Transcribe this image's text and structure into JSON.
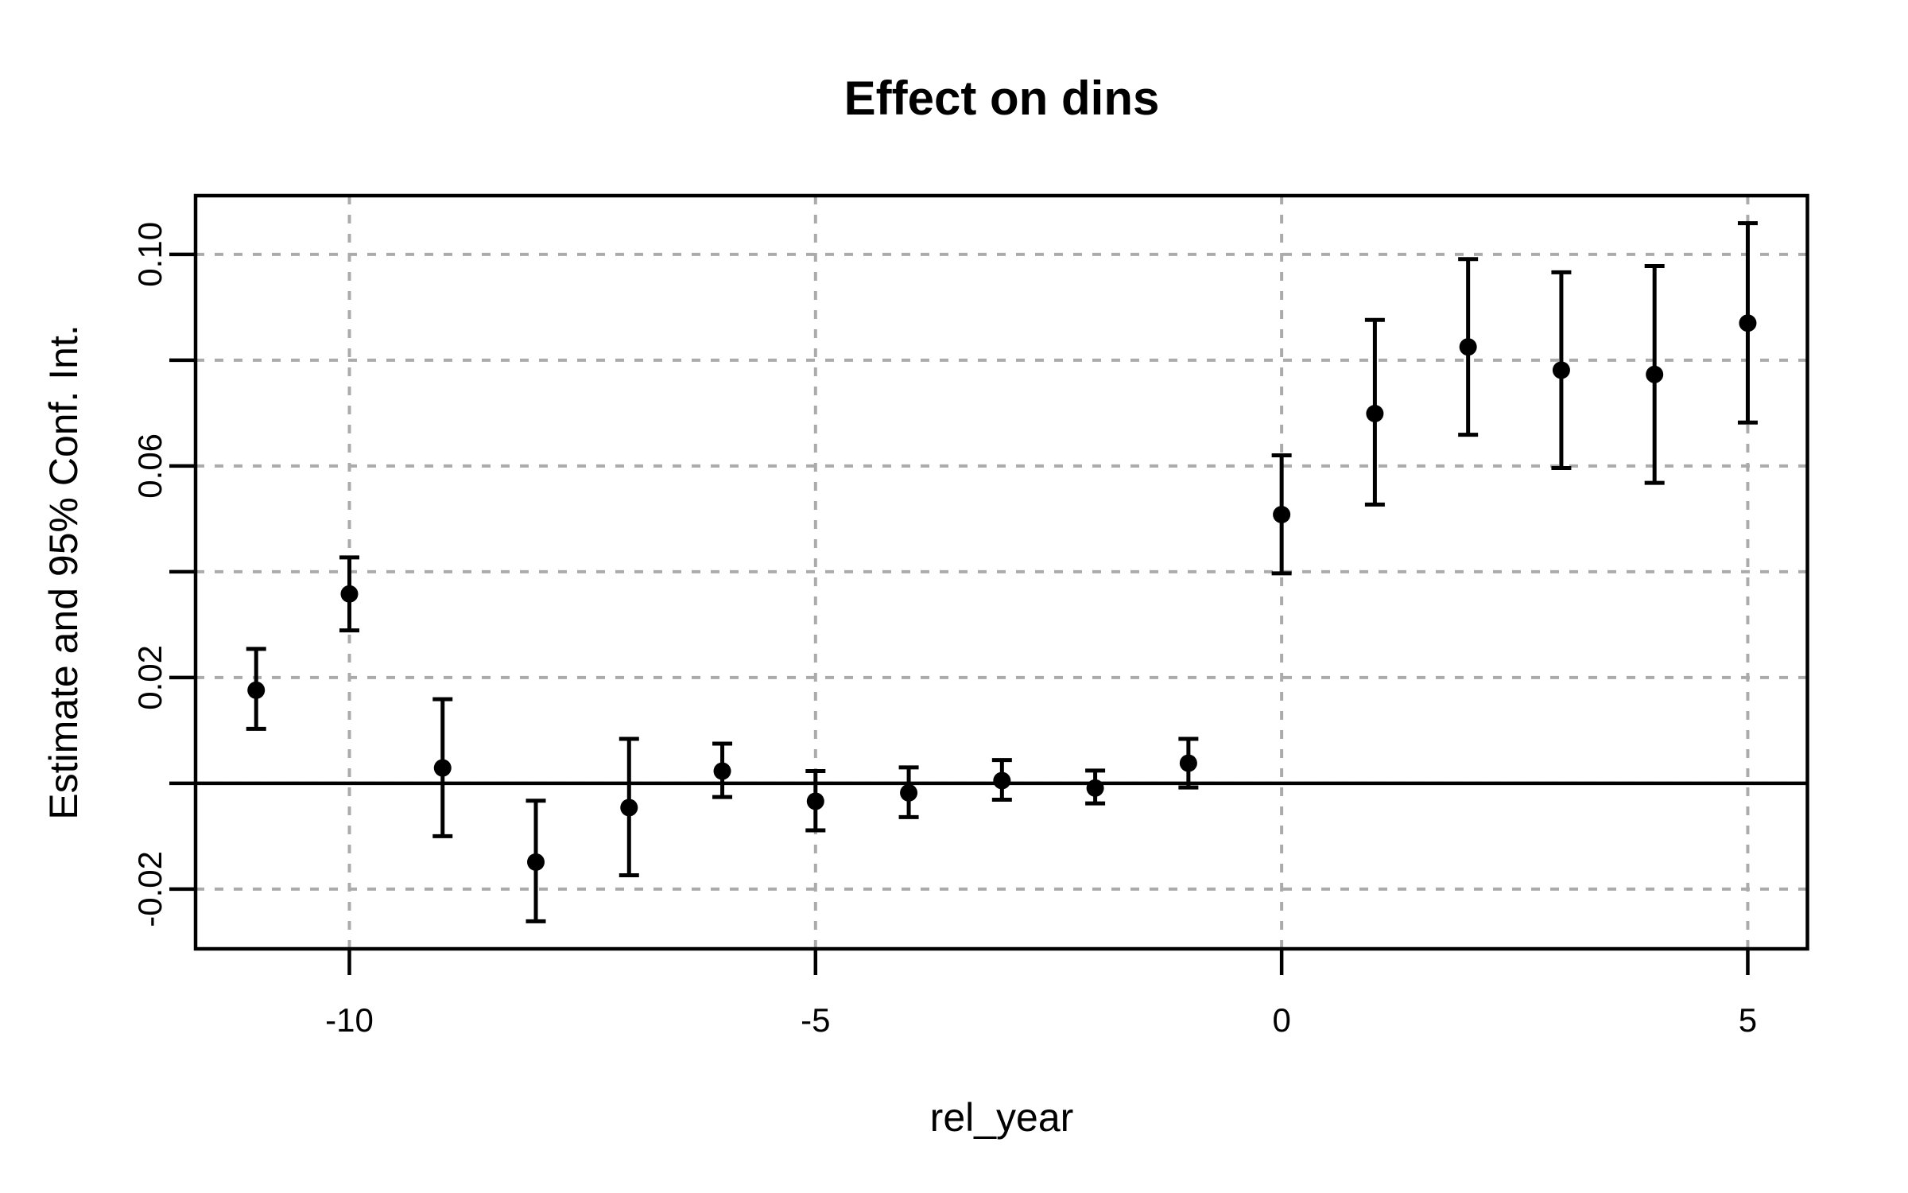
{
  "figure": {
    "title": "Effect on dins",
    "background": "#ffffff"
  },
  "chart_data": {
    "type": "scatter",
    "subtype": "event-study point estimates with 95% confidence intervals",
    "title": "Effect on dins",
    "xlabel": "rel_year",
    "ylabel": "Estimate and 95% Conf. Int.",
    "x": [
      -11,
      -10,
      -9,
      -8,
      -7,
      -6,
      -5,
      -4,
      -3,
      -2,
      -1,
      0,
      1,
      2,
      3,
      4,
      5
    ],
    "estimate": [
      0.0176,
      0.0358,
      0.0029,
      -0.0149,
      -0.0046,
      0.0023,
      -0.0034,
      -0.0018,
      0.0005,
      -0.0009,
      0.0038,
      0.0508,
      0.0699,
      0.0825,
      0.0781,
      0.0773,
      0.087
    ],
    "ci_lower": [
      0.0103,
      0.0289,
      -0.01,
      -0.0261,
      -0.0174,
      -0.0026,
      -0.0089,
      -0.0064,
      -0.0031,
      -0.0038,
      -0.0008,
      0.0397,
      0.0527,
      0.0659,
      0.0596,
      0.0568,
      0.0682
    ],
    "ci_upper": [
      0.0254,
      0.0427,
      0.0159,
      -0.0033,
      0.0084,
      0.0075,
      0.0023,
      0.003,
      0.0044,
      0.0024,
      0.0084,
      0.062,
      0.0876,
      0.0991,
      0.0966,
      0.0978,
      0.1059
    ],
    "xlim": [
      -11.65,
      5.64
    ],
    "ylim": [
      -0.0313,
      0.1111
    ],
    "x_ticks": [
      -10,
      -5,
      0,
      5
    ],
    "x_tick_labels": [
      "-10",
      "-5",
      "0",
      "5"
    ],
    "y_ticks": [
      -0.02,
      0,
      0.02,
      0.04,
      0.06,
      0.08,
      0.1
    ],
    "y_labeled_ticks": [
      {
        "v": -0.02,
        "label": "-0.02"
      },
      {
        "v": 0.02,
        "label": "0.02"
      },
      {
        "v": 0.06,
        "label": "0.06"
      },
      {
        "v": 0.1,
        "label": "0.10"
      }
    ],
    "grid": true,
    "legend": "none",
    "zero_line": 0,
    "colors": {
      "points": "#000000",
      "error_bars": "#000000",
      "grid": "#ababab",
      "axis": "#000000",
      "zero_line": "#000000",
      "background": "#ffffff"
    }
  }
}
